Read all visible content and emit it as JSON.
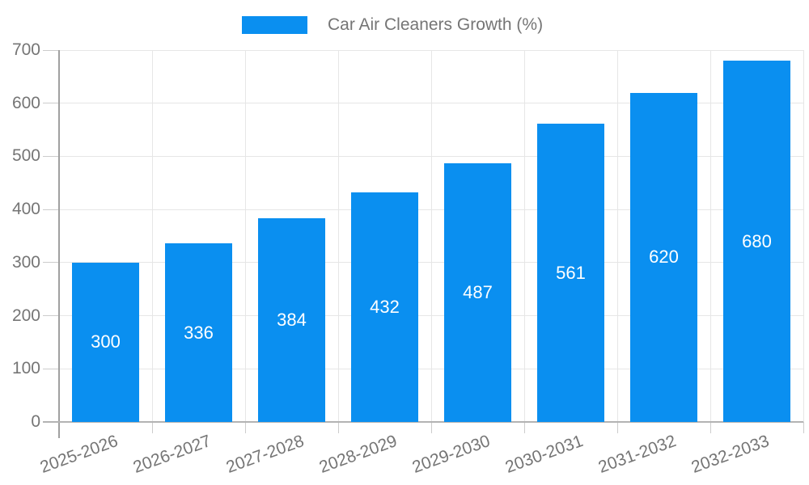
{
  "legend": {
    "label": "Car Air Cleaners Growth (%)"
  },
  "chart_data": {
    "type": "bar",
    "title": "Car Air Cleaners Growth (%)",
    "categories": [
      "2025-2026",
      "2026-2027",
      "2027-2028",
      "2028-2029",
      "2029-2030",
      "2030-2031",
      "2031-2032",
      "2032-2033"
    ],
    "values": [
      300,
      336,
      384,
      432,
      487,
      561,
      620,
      680
    ],
    "xlabel": "",
    "ylabel": "",
    "ylim": [
      0,
      700
    ],
    "ytick_step": 100,
    "grid": true,
    "legend_position": "top-center",
    "colors": {
      "bar": "#0a8ff0",
      "bar_value_text": "#ffffff",
      "axis_text": "#757575",
      "axis_line": "#a0a0a0",
      "gridline": "#e6e6e6",
      "tick_mark": "#cccccc",
      "background": "#ffffff"
    }
  }
}
